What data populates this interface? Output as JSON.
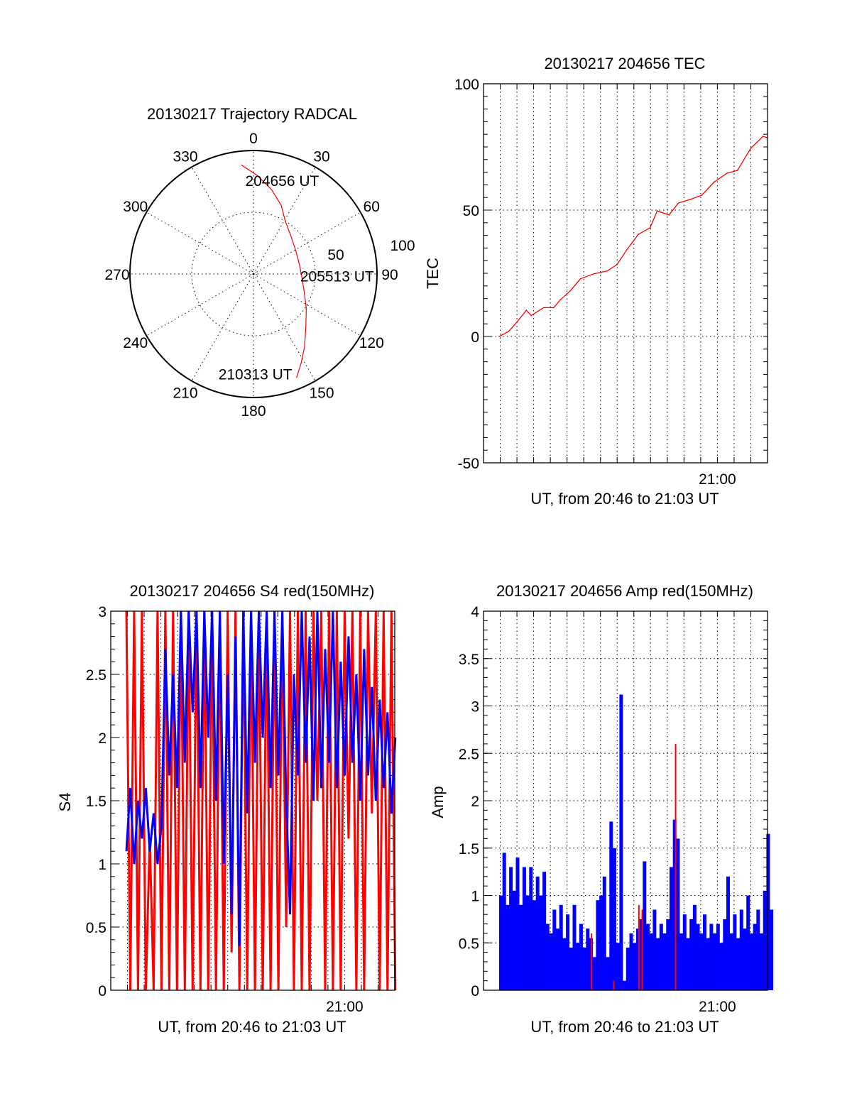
{
  "colors": {
    "red": "#ff0000",
    "blue": "#0000ff",
    "axes": "#000000"
  },
  "chart_data": [
    {
      "type": "polar",
      "title": "20130217 Trajectory RADCAL",
      "angle_labels": [
        "0",
        "30",
        "60",
        "90",
        "120",
        "150",
        "180",
        "210",
        "240",
        "270",
        "300",
        "330"
      ],
      "radial_labels": [
        "50",
        "100"
      ],
      "rlim": [
        0,
        100
      ],
      "grid": true,
      "series": [
        {
          "color": "#ff0000",
          "points_az_r": [
            [
              353.5,
              89
            ],
            [
              2,
              80
            ],
            [
              12,
              70
            ],
            [
              22,
              60
            ],
            [
              31,
              50
            ],
            [
              45,
              43
            ],
            [
              62,
              39
            ],
            [
              80,
              38
            ],
            [
              92,
              39
            ],
            [
              108,
              43
            ],
            [
              123,
              51
            ],
            [
              135,
              60
            ],
            [
              145,
              72
            ],
            [
              152,
              82
            ],
            [
              157.5,
              91
            ]
          ]
        }
      ],
      "annotations": [
        {
          "text": "204656 UT",
          "az": 353.5,
          "r": 89
        },
        {
          "text": "205513 UT",
          "az": 92,
          "r": 39
        },
        {
          "text": "210313 UT",
          "az": 157.5,
          "r": 91
        }
      ]
    },
    {
      "type": "line",
      "title": "20130217 204656 TEC",
      "xlabel": "UT, from 20:46 to 21:03 UT",
      "ylabel": "TEC",
      "xlim": [
        "20:46:00",
        "21:03:00"
      ],
      "ylim": [
        -50,
        100
      ],
      "yticks": [
        "100",
        "50",
        "0",
        "-50"
      ],
      "xticks": [
        "21:00"
      ],
      "grid": true,
      "series": [
        {
          "color": "#ff0000",
          "x": [
            "20:46:56",
            "20:47:30",
            "20:48:00",
            "20:48:34",
            "20:48:51",
            "20:49:36",
            "20:50:12",
            "20:50:36",
            "20:51:12",
            "20:51:48",
            "20:52:36",
            "20:53:24",
            "20:54:00",
            "20:54:34",
            "20:55:16",
            "20:55:58",
            "20:56:24",
            "20:57:06",
            "20:57:40",
            "20:58:24",
            "20:59:04",
            "20:59:48",
            "21:00:36",
            "21:01:12",
            "21:02:00",
            "21:02:44",
            "21:02:57"
          ],
          "y": [
            0,
            2,
            5.7,
            10.4,
            8.3,
            11.4,
            11.4,
            14.5,
            18.1,
            22.8,
            24.8,
            25.9,
            28.5,
            34.2,
            40.4,
            43,
            49.7,
            48.1,
            52.8,
            54.3,
            55.9,
            61.1,
            64.7,
            65.7,
            74.5,
            79.2,
            78.7
          ]
        }
      ]
    },
    {
      "type": "line",
      "title": "20130217 204656 S4 red(150MHz)",
      "xlabel": "UT, from 20:46 to 21:03 UT",
      "ylabel": "S4",
      "xlim": [
        "20:46:00",
        "21:03:00"
      ],
      "ylim": [
        0,
        3
      ],
      "yticks": [
        "3",
        "2.5",
        "2",
        "1.5",
        "1",
        "0.5",
        "0"
      ],
      "xticks": [
        "21:00"
      ],
      "grid": true,
      "start": "20:46:56",
      "step_s": 14,
      "series": [
        {
          "color": "#ff0000",
          "values": [
            3,
            0,
            3,
            0,
            3,
            0,
            1.2,
            0,
            3,
            0,
            3,
            0,
            3,
            0,
            3,
            0,
            3,
            0,
            3,
            0,
            3,
            0,
            3,
            0,
            3,
            0,
            3,
            0.3,
            3,
            0,
            3,
            0,
            3,
            0,
            3,
            0,
            3,
            0,
            3,
            0,
            3,
            0.5,
            3,
            0,
            3,
            0,
            3,
            0,
            3,
            1.5,
            3,
            0,
            3,
            0,
            3,
            0,
            3,
            1.2,
            3,
            0,
            3,
            0,
            3,
            1.4,
            3,
            0,
            3,
            0,
            3,
            0
          ]
        },
        {
          "color": "#0000ff",
          "values": [
            1.1,
            1.6,
            1.0,
            1.5,
            1.2,
            1.6,
            1.1,
            1.4,
            1.0,
            1.3,
            2.7,
            1.7,
            2.5,
            1.6,
            3.0,
            1.8,
            3.0,
            2.2,
            3.0,
            1.6,
            3.0,
            2.0,
            3.0,
            1.5,
            3.0,
            1.0,
            2.5,
            0.6,
            2.8,
            0.35,
            3.0,
            1.4,
            3.0,
            1.8,
            3.0,
            2.0,
            3.0,
            1.6,
            3.0,
            1.7,
            3.0,
            1.5,
            0.6,
            2.5,
            1.7,
            3.0,
            1.8,
            2.8,
            1.5,
            3.0,
            1.6,
            2.7,
            1.8,
            3.0,
            1.6,
            2.6,
            1.7,
            2.8,
            1.8,
            2.5,
            1.5,
            2.7,
            1.7,
            2.4,
            1.5,
            2.3,
            1.6,
            2.2,
            1.4,
            2.0
          ]
        }
      ]
    },
    {
      "type": "bar",
      "title": "20130217 204656 Amp red(150MHz)",
      "xlabel": "UT, from 20:46 to 21:03 UT",
      "ylabel": "Amp",
      "xlim": [
        "20:46:00",
        "21:03:00"
      ],
      "ylim": [
        0,
        4
      ],
      "yticks": [
        "4",
        "3.5",
        "3",
        "2.5",
        "2",
        "1.5",
        "1",
        "0.5",
        "0"
      ],
      "xticks": [
        "21:00"
      ],
      "grid": true,
      "start": "20:46:56",
      "step_s": 12,
      "series": [
        {
          "color": "#0000ff",
          "values": [
            1.0,
            1.45,
            0.9,
            1.3,
            1.05,
            1.4,
            0.9,
            1.3,
            1.0,
            1.3,
            0.95,
            1.2,
            1.0,
            1.25,
            0.7,
            0.6,
            0.85,
            0.65,
            0.9,
            0.55,
            0.8,
            0.45,
            0.9,
            0.5,
            0.7,
            0.45,
            0.65,
            0.55,
            0.35,
            0.95,
            1.0,
            1.2,
            0.35,
            1.78,
            1.5,
            0.5,
            3.12,
            0.1,
            0.45,
            0.6,
            0.5,
            0.65,
            0.75,
            1.36,
            0.7,
            0.6,
            0.85,
            0.55,
            0.7,
            0.6,
            0.75,
            1.3,
            1.8,
            1.6,
            0.6,
            0.8,
            0.55,
            0.75,
            0.9,
            0.7,
            0.6,
            0.8,
            0.55,
            0.7,
            0.6,
            0.7,
            0.5,
            0.75,
            1.2,
            0.6,
            0.8,
            0.55,
            0.85,
            0.65,
            1.0,
            0.6,
            0.7,
            0.85,
            0.6,
            1.05,
            1.65,
            0.85
          ]
        },
        {
          "color": "#ff0000",
          "spikes": [
            {
              "t": "20:52:28",
              "v": 0.6
            },
            {
              "t": "20:53:48",
              "v": 0.1
            },
            {
              "t": "20:55:18",
              "v": 0.9
            },
            {
              "t": "20:55:30",
              "v": 0.85
            },
            {
              "t": "20:57:30",
              "v": 2.6
            }
          ]
        }
      ]
    }
  ]
}
